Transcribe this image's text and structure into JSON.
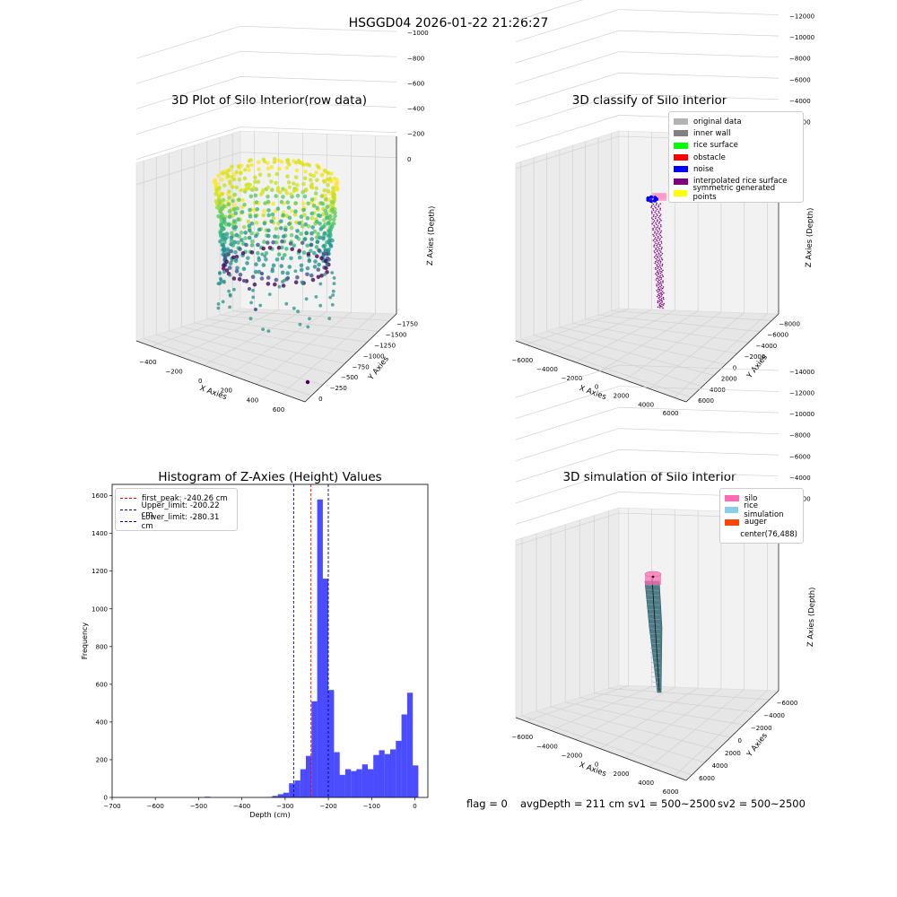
{
  "suptitle": "HSGGD04 2026-01-22 21:26:27",
  "status": {
    "flag": "flag = 0",
    "avg_depth": "avgDepth = 211 cm",
    "sv1": "sv1 = 500~2500",
    "sv2": "sv2 = 500~2500"
  },
  "colors": {
    "hist_bar": "#0000ff",
    "peak_line": "#ff0000",
    "limit_line": "#00008b",
    "silo": "#ff69b4",
    "rice_simulation": "#87ceeb",
    "auger": "#ff4500",
    "interpolated": "#800080",
    "noise": "#0000ff"
  },
  "chart_data": [
    {
      "type": "scatter",
      "projection": "3d",
      "title": "3D Plot of Silo Interior(row data)",
      "xlabel": "X Axies",
      "ylabel": "Y Axies",
      "zlabel": "Z Axies (Depth)",
      "x_ticks": [
        "−400",
        "−200",
        "0",
        "200",
        "400",
        "600"
      ],
      "y_ticks": [
        "0",
        "−250",
        "−500",
        "−750",
        "−1000",
        "−1250",
        "−1500",
        "−1750"
      ],
      "z_ticks": [
        "0",
        "−200",
        "−400",
        "−600",
        "−800",
        "−1000"
      ],
      "colormap": "viridis",
      "description_points": "ring of points, z from about 0 (yellow) down to about -300 (teal), few outliers near -800"
    },
    {
      "type": "scatter",
      "projection": "3d",
      "title": "3D classify of Silo Interior",
      "xlabel": "X Axies",
      "ylabel": "Y Axies",
      "zlabel": "Z Axies (Depth)",
      "x_ticks": [
        "−6000",
        "−4000",
        "−2000",
        "0",
        "2000",
        "4000",
        "6000"
      ],
      "y_ticks": [
        "6000",
        "4000",
        "2000",
        "0",
        "−2000",
        "−4000",
        "−6000",
        "−8000"
      ],
      "z_ticks": [
        "0",
        "−2000",
        "−4000",
        "−6000",
        "−8000",
        "−10000",
        "−12000",
        "−14000"
      ],
      "legend": [
        {
          "label": "original data",
          "color": "#b3b3b3"
        },
        {
          "label": "inner wall",
          "color": "#808080"
        },
        {
          "label": "rice surface",
          "color": "#00ff00"
        },
        {
          "label": "obstacle",
          "color": "#ff0000"
        },
        {
          "label": "noise",
          "color": "#0000ff"
        },
        {
          "label": "interpolated rice surface",
          "color": "#800080"
        },
        {
          "label": "symmetric generated points",
          "color": "#ffff00"
        }
      ],
      "legend_position": "top-right"
    },
    {
      "type": "bar",
      "title": "Histogram of Z-Axies (Height) Values",
      "xlabel": "Depth (cm)",
      "ylabel": "Frequency",
      "xlim": [
        -700,
        30
      ],
      "ylim": [
        0,
        1660
      ],
      "x_ticks": [
        -700,
        -600,
        -500,
        -400,
        -300,
        -200,
        -100,
        0
      ],
      "x_tick_labels": [
        "−700",
        "−600",
        "−500",
        "−400",
        "−300",
        "−200",
        "−100",
        "0"
      ],
      "y_ticks": [
        0,
        200,
        400,
        600,
        800,
        1000,
        1200,
        1400,
        1600
      ],
      "bin_width": 13,
      "bins": [
        {
          "x0": -486,
          "count": 4
        },
        {
          "x0": -343,
          "count": 2
        },
        {
          "x0": -330,
          "count": 8
        },
        {
          "x0": -317,
          "count": 17
        },
        {
          "x0": -304,
          "count": 25
        },
        {
          "x0": -291,
          "count": 75
        },
        {
          "x0": -278,
          "count": 90
        },
        {
          "x0": -265,
          "count": 150
        },
        {
          "x0": -252,
          "count": 220
        },
        {
          "x0": -239,
          "count": 510
        },
        {
          "x0": -226,
          "count": 1580
        },
        {
          "x0": -213,
          "count": 1160
        },
        {
          "x0": -200,
          "count": 570
        },
        {
          "x0": -187,
          "count": 240
        },
        {
          "x0": -174,
          "count": 120
        },
        {
          "x0": -161,
          "count": 150
        },
        {
          "x0": -148,
          "count": 140
        },
        {
          "x0": -135,
          "count": 150
        },
        {
          "x0": -122,
          "count": 175
        },
        {
          "x0": -109,
          "count": 150
        },
        {
          "x0": -96,
          "count": 225
        },
        {
          "x0": -83,
          "count": 250
        },
        {
          "x0": -70,
          "count": 230
        },
        {
          "x0": -57,
          "count": 255
        },
        {
          "x0": -44,
          "count": 300
        },
        {
          "x0": -31,
          "count": 440
        },
        {
          "x0": -18,
          "count": 555
        },
        {
          "x0": -5,
          "count": 170
        }
      ],
      "vlines": [
        {
          "label": "first_peak: -240.26 cm",
          "x": -240.26,
          "color": "#ff0000"
        },
        {
          "label": "Upper_limit: -200.22 cm",
          "x": -200.22,
          "color": "#00008b"
        },
        {
          "label": "Lower_limit: -280.31 cm",
          "x": -280.31,
          "color": "#00008b"
        }
      ],
      "legend_position": "top-left"
    },
    {
      "type": "scatter",
      "projection": "3d",
      "title": "3D simulation of Silo Interior",
      "xlabel": "X Axies",
      "ylabel": "Y Axies",
      "zlabel": "Z Axies (Depth)",
      "x_ticks": [
        "−6000",
        "−4000",
        "−2000",
        "0",
        "2000",
        "4000",
        "6000"
      ],
      "y_ticks": [
        "6000",
        "4000",
        "2000",
        "0",
        "−2000",
        "−4000",
        "−6000"
      ],
      "z_ticks": [
        "0",
        "−2000",
        "−4000",
        "−6000",
        "−8000",
        "−10000",
        "−12000",
        "−14000"
      ],
      "legend": [
        {
          "label": "silo",
          "color": "#ff69b4"
        },
        {
          "label": "rice simulation",
          "color": "#87ceeb"
        },
        {
          "label": "auger",
          "color": "#ff4500"
        },
        {
          "label": "center(76,488)",
          "color": ""
        }
      ],
      "legend_position": "top-right"
    }
  ]
}
